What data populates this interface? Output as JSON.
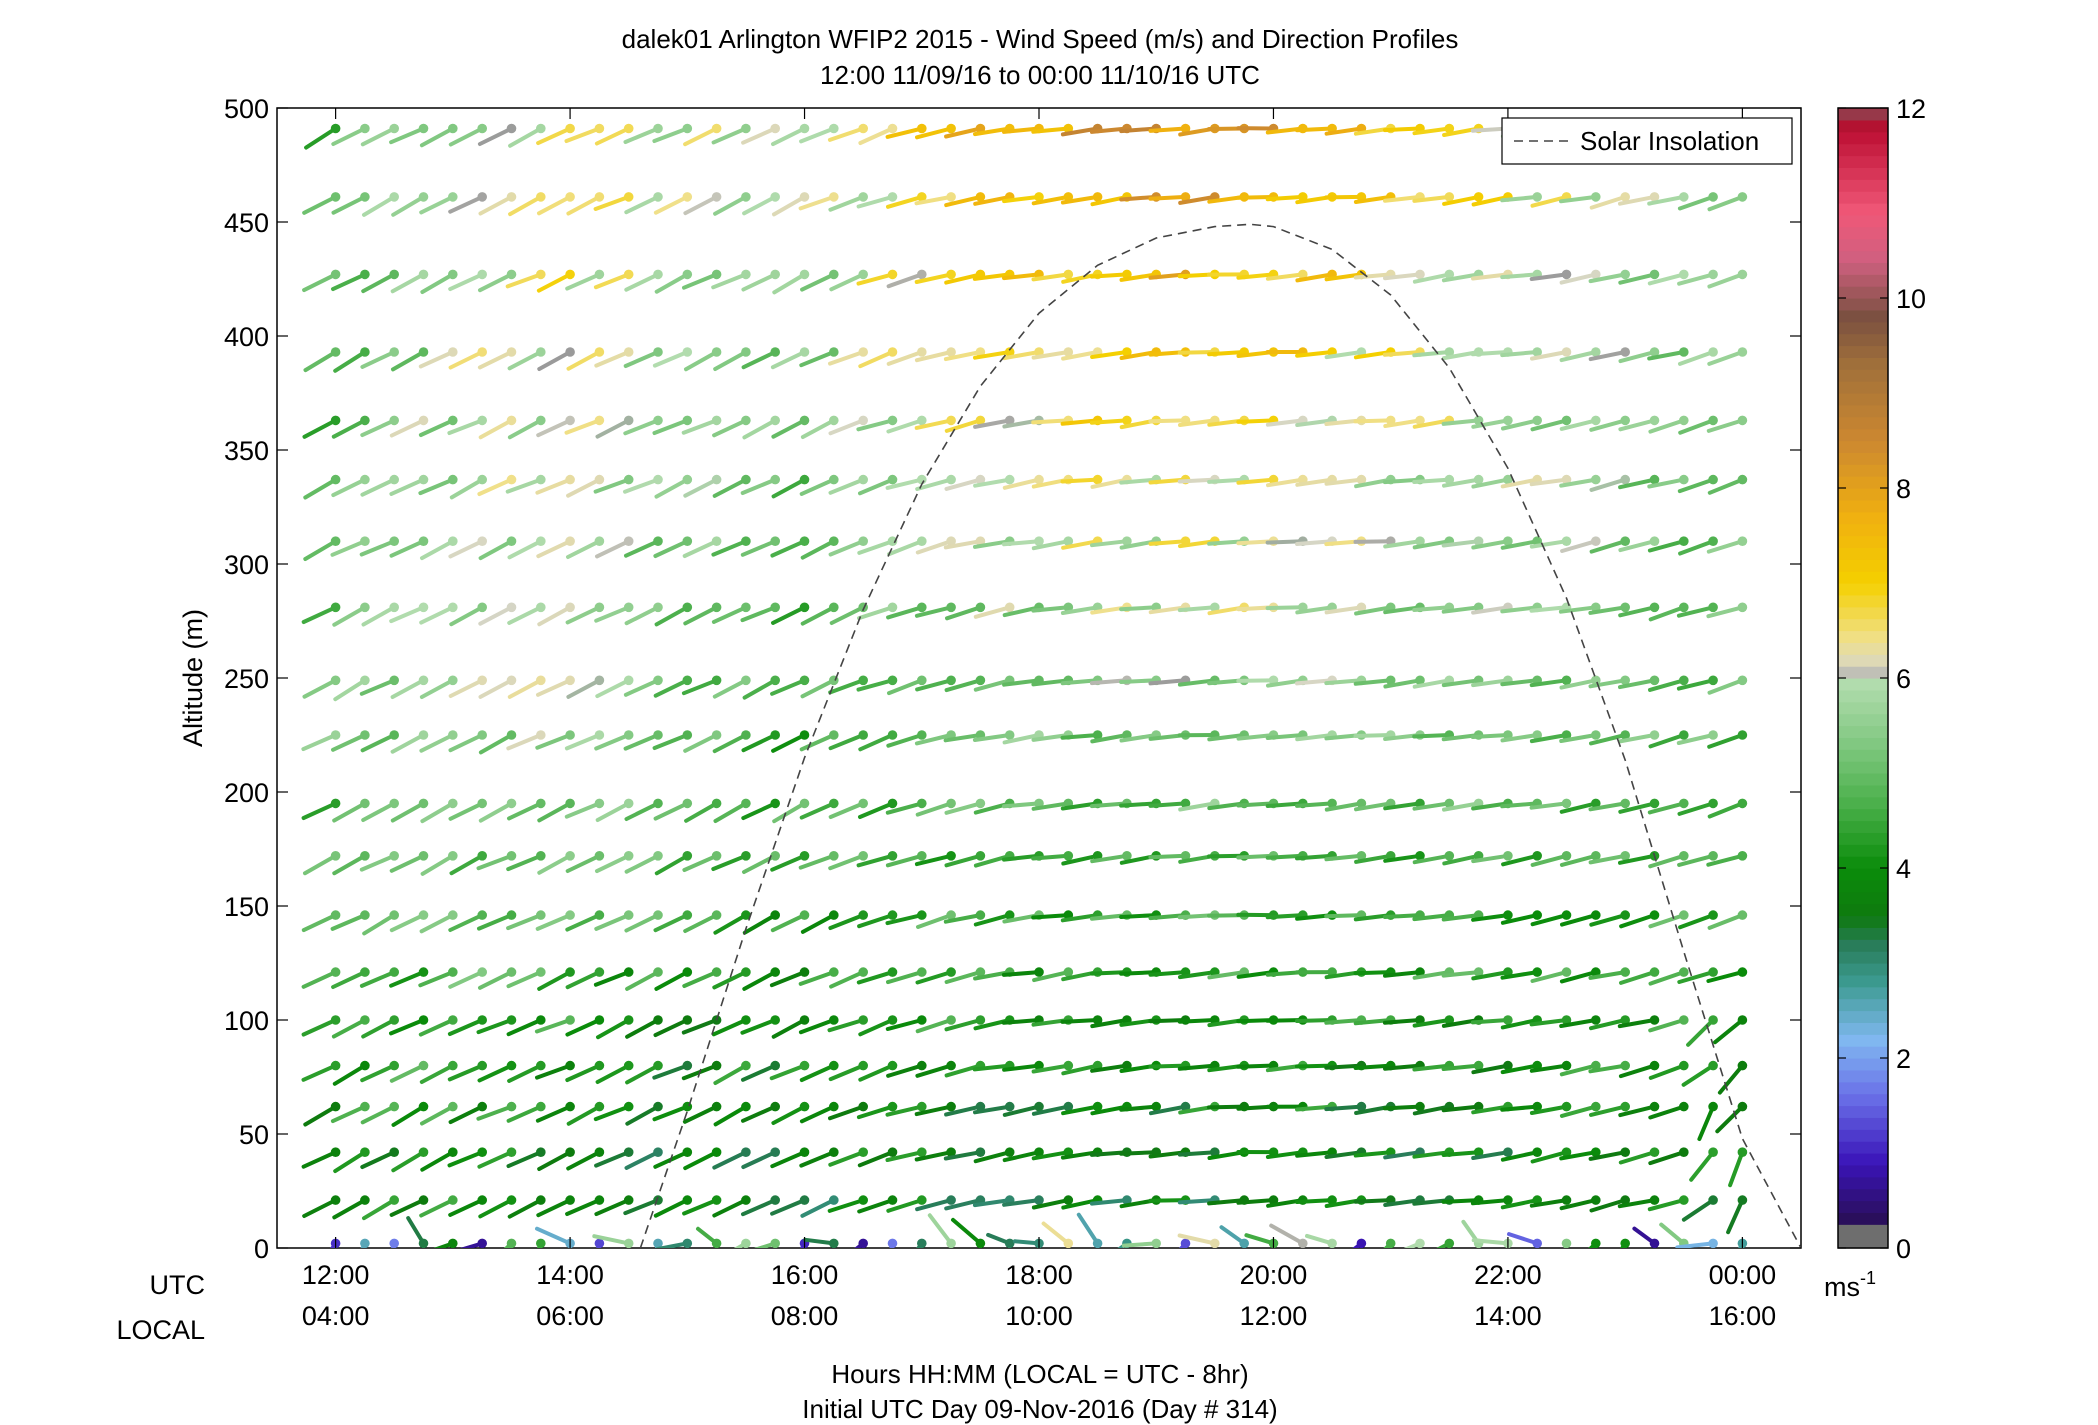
{
  "chart_data": {
    "type": "wind_barb_profile",
    "title": "dalek01 Arlington WFIP2 2015 - Wind Speed (m/s) and Direction Profiles",
    "subtitle": "12:00 11/09/16 to 00:00 11/10/16  UTC",
    "ylabel": "Altitude (m)",
    "xlabel": "Hours HH:MM  (LOCAL = UTC - 8hr)",
    "xlabel2": "Initial UTC Day 09-Nov-2016 (Day # 314)",
    "row_label_utc": "UTC",
    "row_label_local": "LOCAL",
    "ylim": [
      0,
      500
    ],
    "y_ticks": [
      0,
      50,
      100,
      150,
      200,
      250,
      300,
      350,
      400,
      450,
      500
    ],
    "y_tick_labels": [
      "0",
      "50",
      "100",
      "150",
      "200",
      "250",
      "300",
      "350",
      "400",
      "450",
      "500"
    ],
    "x_range_hours": [
      11.5,
      24.5
    ],
    "x_ticks_hours": [
      12,
      14,
      16,
      18,
      20,
      22,
      24
    ],
    "x_tick_labels_utc": [
      "12:00",
      "14:00",
      "16:00",
      "18:00",
      "20:00",
      "22:00",
      "00:00"
    ],
    "x_tick_labels_local": [
      "04:00",
      "06:00",
      "08:00",
      "10:00",
      "12:00",
      "14:00",
      "16:00"
    ],
    "legend": {
      "entries": [
        "Solar Insolation"
      ],
      "placement": "top-right"
    },
    "colorbar": {
      "min": 0,
      "max": 12,
      "ticks": [
        0,
        2,
        4,
        6,
        8,
        10,
        12
      ],
      "tick_labels": [
        "0",
        "2",
        "4",
        "6",
        "8",
        "10",
        "12"
      ],
      "unit_label": "ms",
      "unit_exponent": "-1"
    },
    "solar_insolation": {
      "style": "dashed",
      "color": "#444444",
      "hours": [
        14.6,
        15.0,
        15.5,
        16.0,
        16.5,
        17.0,
        17.5,
        18.0,
        18.5,
        19.0,
        19.5,
        19.8,
        20.0,
        20.5,
        21.0,
        21.5,
        22.0,
        22.5,
        23.0,
        23.5,
        24.0,
        24.5
      ],
      "altitude_equiv_m": [
        0,
        60,
        140,
        215,
        280,
        335,
        378,
        410,
        431,
        443,
        448,
        449,
        448,
        438,
        418,
        386,
        342,
        285,
        214,
        130,
        48,
        0
      ]
    },
    "heights_m": [
      2,
      21,
      42,
      62,
      80,
      100,
      121,
      146,
      172,
      195,
      225,
      249,
      281,
      310,
      337,
      363,
      393,
      427,
      461,
      491
    ],
    "time_step_hours": 0.25,
    "barb_length_hours": 0.3,
    "speed_profile": {
      "hours": [
        12.0,
        13.0,
        14.0,
        15.0,
        16.0,
        17.0,
        18.0,
        19.0,
        20.0,
        21.0,
        22.0,
        23.0,
        24.0
      ],
      "low_ms": [
        3.8,
        3.8,
        3.6,
        3.4,
        3.4,
        3.5,
        3.4,
        3.3,
        3.3,
        3.4,
        3.5,
        3.6,
        3.7
      ],
      "mid_ms": [
        5.2,
        5.7,
        5.8,
        5.1,
        4.8,
        5.1,
        5.3,
        5.4,
        5.6,
        5.4,
        5.3,
        5.2,
        5.1
      ],
      "high_ms": [
        4.6,
        5.8,
        6.6,
        6.0,
        5.7,
        7.0,
        7.8,
        8.3,
        8.0,
        7.1,
        6.6,
        5.9,
        5.3
      ]
    },
    "direction_profile": {
      "hours": [
        12.0,
        14.0,
        16.0,
        18.0,
        20.0,
        22.0,
        24.0
      ],
      "rise_deg": [
        28,
        24,
        26,
        9,
        4,
        8,
        18
      ]
    },
    "surface_level": {
      "direction": "variable",
      "speed_range_ms": [
        0.5,
        6.5
      ]
    }
  }
}
